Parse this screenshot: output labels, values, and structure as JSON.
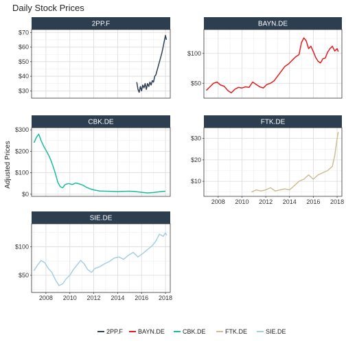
{
  "chart_data": {
    "type": "line",
    "title": "Daily Stock Prices",
    "ylabel": "Adjusted Prices",
    "xlabel": "",
    "x_ticks": [
      2008,
      2010,
      2012,
      2014,
      2016,
      2018
    ],
    "xlim": [
      2006.8,
      2018.4
    ],
    "grid": true,
    "legend_position": "bottom",
    "panels": [
      {
        "name": "2PP.F",
        "color": "#2c3e50",
        "ylim": [
          25,
          72
        ],
        "y_ticks": [
          30,
          40,
          50,
          60,
          70
        ],
        "y_tick_labels": [
          "$30",
          "$40",
          "$50",
          "$60",
          "$70"
        ],
        "x": [
          2015.6,
          2015.7,
          2015.8,
          2015.9,
          2016.0,
          2016.1,
          2016.2,
          2016.3,
          2016.4,
          2016.5,
          2016.6,
          2016.7,
          2016.8,
          2016.9,
          2017.0,
          2017.1,
          2017.2,
          2017.3,
          2017.4,
          2017.5,
          2017.6,
          2017.7,
          2017.8,
          2017.9,
          2018.0,
          2018.08
        ],
        "values": [
          36,
          31,
          29,
          33,
          30,
          34,
          32,
          35,
          31,
          35,
          33,
          36,
          34,
          37,
          36,
          40,
          41,
          44,
          47,
          50,
          53,
          56,
          60,
          64,
          68,
          65
        ]
      },
      {
        "name": "BAYN.DE",
        "color": "#e31a1c",
        "ylim": [
          25,
          140
        ],
        "y_ticks": [
          50,
          100
        ],
        "y_tick_labels": [
          "$50",
          "$100"
        ],
        "x": [
          2007.0,
          2007.3,
          2007.6,
          2007.9,
          2008.2,
          2008.5,
          2008.8,
          2009.1,
          2009.4,
          2009.7,
          2010.0,
          2010.3,
          2010.6,
          2010.9,
          2011.2,
          2011.5,
          2011.8,
          2012.1,
          2012.4,
          2012.7,
          2013.0,
          2013.3,
          2013.6,
          2013.9,
          2014.2,
          2014.5,
          2014.8,
          2015.0,
          2015.2,
          2015.4,
          2015.6,
          2015.8,
          2016.0,
          2016.2,
          2016.4,
          2016.6,
          2016.8,
          2017.0,
          2017.2,
          2017.4,
          2017.6,
          2017.8,
          2018.0,
          2018.1
        ],
        "values": [
          38,
          44,
          50,
          52,
          47,
          45,
          38,
          34,
          40,
          43,
          42,
          44,
          43,
          52,
          48,
          44,
          42,
          48,
          50,
          54,
          62,
          70,
          78,
          82,
          88,
          94,
          98,
          118,
          126,
          121,
          108,
          112,
          103,
          93,
          87,
          84,
          91,
          92,
          102,
          108,
          112,
          104,
          108,
          103
        ]
      },
      {
        "name": "CBK.DE",
        "color": "#18bc9c",
        "ylim": [
          -10,
          310
        ],
        "y_ticks": [
          0,
          100,
          200,
          300
        ],
        "y_tick_labels": [
          "$0",
          "$100",
          "$200",
          "$300"
        ],
        "x": [
          2007.0,
          2007.2,
          2007.4,
          2007.6,
          2007.8,
          2008.0,
          2008.2,
          2008.4,
          2008.6,
          2008.8,
          2009.0,
          2009.2,
          2009.4,
          2009.6,
          2009.9,
          2010.2,
          2010.5,
          2010.8,
          2011.1,
          2011.4,
          2011.7,
          2012.0,
          2012.5,
          2013.0,
          2013.5,
          2014.0,
          2014.5,
          2015.0,
          2015.5,
          2016.0,
          2016.5,
          2017.0,
          2017.5,
          2018.0
        ],
        "values": [
          240,
          265,
          280,
          250,
          225,
          205,
          185,
          160,
          130,
          95,
          55,
          35,
          30,
          45,
          50,
          45,
          52,
          48,
          42,
          32,
          25,
          20,
          15,
          14,
          13,
          12,
          13,
          14,
          12,
          9,
          6,
          8,
          11,
          14
        ]
      },
      {
        "name": "FTK.DE",
        "color": "#ccbe93",
        "ylim": [
          3,
          35
        ],
        "y_ticks": [
          10,
          20,
          30
        ],
        "y_tick_labels": [
          "$10",
          "$20",
          "$30"
        ],
        "x": [
          2010.8,
          2011.2,
          2011.6,
          2012.0,
          2012.4,
          2012.8,
          2013.2,
          2013.6,
          2014.0,
          2014.4,
          2014.8,
          2015.2,
          2015.6,
          2016.0,
          2016.4,
          2016.8,
          2017.2,
          2017.6,
          2017.8,
          2018.0,
          2018.1
        ],
        "values": [
          5,
          6,
          5.5,
          6,
          7,
          5.5,
          6,
          6.5,
          6,
          8,
          10,
          11,
          13,
          11,
          13,
          14,
          15,
          17,
          22,
          30,
          33
        ]
      },
      {
        "name": "SIE.DE",
        "color": "#a6cee3",
        "ylim": [
          20,
          140
        ],
        "y_ticks": [
          50,
          100
        ],
        "y_tick_labels": [
          "$50",
          "$100"
        ],
        "x": [
          2007.0,
          2007.3,
          2007.6,
          2007.9,
          2008.2,
          2008.5,
          2008.8,
          2009.1,
          2009.4,
          2009.7,
          2010.0,
          2010.3,
          2010.6,
          2010.9,
          2011.2,
          2011.5,
          2011.8,
          2012.1,
          2012.5,
          2012.9,
          2013.3,
          2013.7,
          2014.1,
          2014.5,
          2014.9,
          2015.3,
          2015.7,
          2016.1,
          2016.5,
          2016.9,
          2017.2,
          2017.5,
          2017.8,
          2018.0,
          2018.1
        ],
        "values": [
          58,
          68,
          76,
          72,
          62,
          55,
          42,
          32,
          35,
          44,
          50,
          60,
          68,
          76,
          70,
          60,
          55,
          62,
          65,
          70,
          74,
          80,
          82,
          78,
          85,
          90,
          82,
          88,
          95,
          102,
          110,
          122,
          118,
          124,
          120
        ]
      }
    ]
  }
}
